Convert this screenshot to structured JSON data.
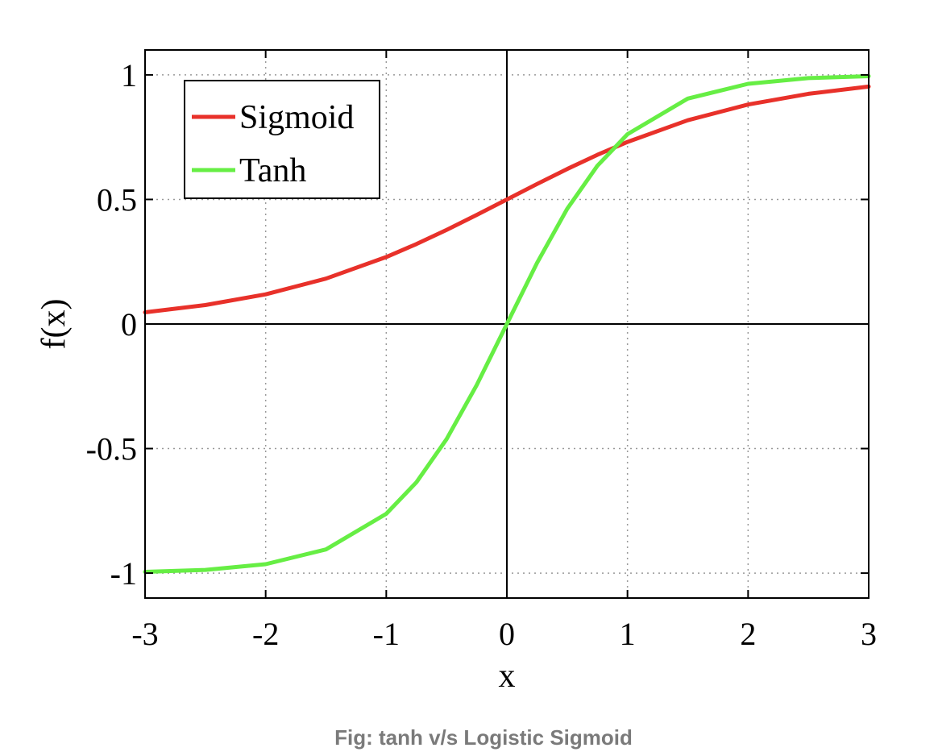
{
  "caption": "Fig: tanh v/s Logistic Sigmoid",
  "chart_data": {
    "type": "line",
    "title": "",
    "xlabel": "x",
    "ylabel": "f(x)",
    "xlim": [
      -3,
      3
    ],
    "ylim": [
      -1.1,
      1.1
    ],
    "xticks": [
      -3,
      -2,
      -1,
      0,
      1,
      2,
      3
    ],
    "xtick_labels": [
      "-3",
      "-2",
      "-1",
      "0",
      "1",
      "2",
      "3"
    ],
    "yticks": [
      -1,
      -0.5,
      0,
      0.5,
      1
    ],
    "ytick_labels": [
      "-1",
      "-0.5",
      "0",
      "0.5",
      "1"
    ],
    "grid": true,
    "legend_position": "top-left",
    "x": [
      -3,
      -2.5,
      -2,
      -1.5,
      -1,
      -0.75,
      -0.5,
      -0.25,
      0,
      0.25,
      0.5,
      0.75,
      1,
      1.5,
      2,
      2.5,
      3
    ],
    "series": [
      {
        "name": "Sigmoid",
        "color": "#e8312a",
        "values": [
          0.047,
          0.076,
          0.119,
          0.182,
          0.269,
          0.321,
          0.378,
          0.438,
          0.5,
          0.562,
          0.622,
          0.679,
          0.731,
          0.818,
          0.881,
          0.924,
          0.953
        ]
      },
      {
        "name": "Tanh",
        "color": "#66ee44",
        "values": [
          -0.995,
          -0.987,
          -0.964,
          -0.905,
          -0.762,
          -0.635,
          -0.462,
          -0.245,
          0,
          0.245,
          0.462,
          0.635,
          0.762,
          0.905,
          0.964,
          0.987,
          0.995
        ]
      }
    ]
  }
}
